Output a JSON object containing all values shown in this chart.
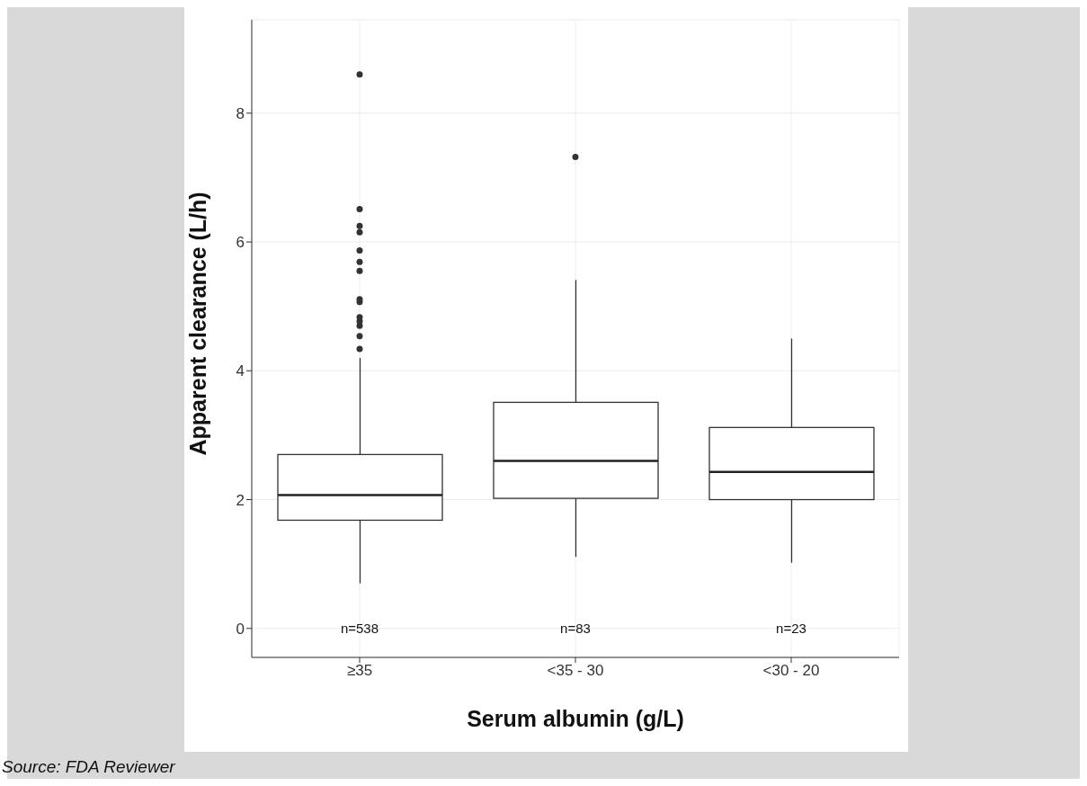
{
  "chart_data": {
    "type": "box",
    "xlabel": "Serum albumin (g/L)",
    "ylabel": "Apparent clearance (L/h)",
    "categories": [
      "≥35",
      "<35 - 30",
      "<30 - 20"
    ],
    "boxes": [
      {
        "low": 0.7,
        "q1": 1.68,
        "median": 2.07,
        "q3": 2.7,
        "high": 4.2,
        "outliers": [
          4.34,
          4.54,
          4.7,
          4.77,
          4.83,
          5.07,
          5.11,
          5.55,
          5.69,
          5.87,
          6.15,
          6.25,
          6.51,
          8.6
        ]
      },
      {
        "low": 1.11,
        "q1": 2.02,
        "median": 2.6,
        "q3": 3.51,
        "high": 5.41,
        "outliers": [
          7.32
        ]
      },
      {
        "low": 1.02,
        "q1": 2.0,
        "median": 2.43,
        "q3": 3.12,
        "high": 4.5
      }
    ],
    "ylim": [
      -0.45,
      9.45
    ],
    "yticks": [
      0,
      2,
      4,
      6,
      8
    ],
    "grid": true,
    "annotations": [
      "n=538",
      "n=83",
      "n=23",
      "Source: FDA Reviewer"
    ]
  }
}
